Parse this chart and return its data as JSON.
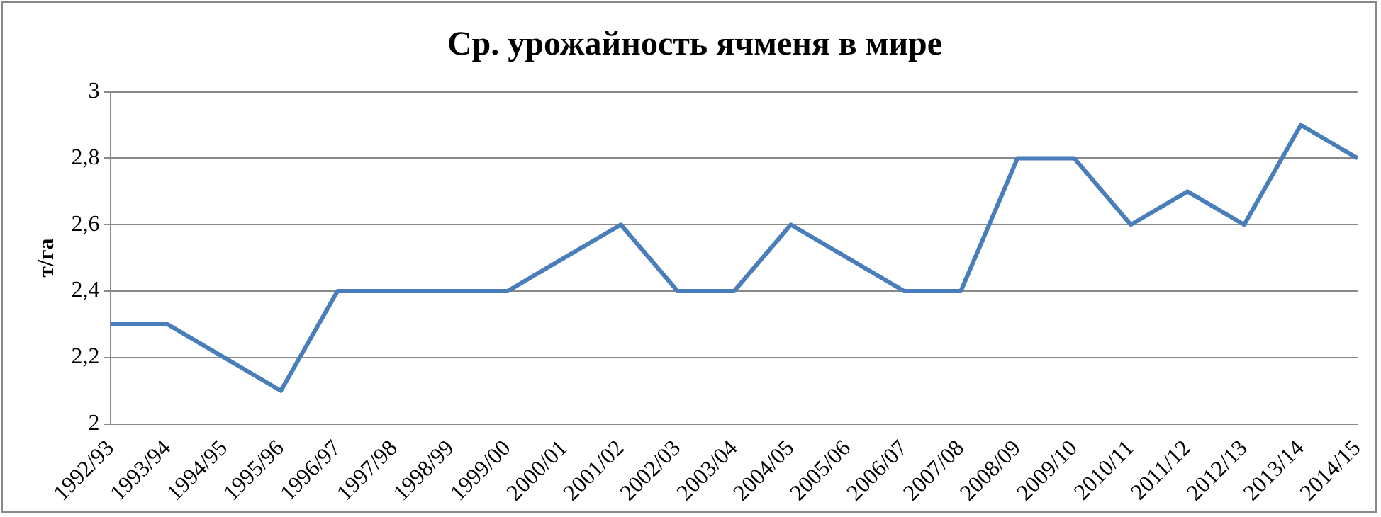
{
  "chart_data": {
    "type": "line",
    "title": "Ср. урожайность ячменя в мире",
    "ylabel": "т/га",
    "categories": [
      "1992/93",
      "1993/94",
      "1994/95",
      "1995/96",
      "1996/97",
      "1997/98",
      "1998/99",
      "1999/00",
      "2000/01",
      "2001/02",
      "2002/03",
      "2003/04",
      "2004/05",
      "2005/06",
      "2006/07",
      "2007/08",
      "2008/09",
      "2009/10",
      "2010/11",
      "2011/12",
      "2012/13",
      "2013/14",
      "2014/15"
    ],
    "series": [
      {
        "color": "#4a7ebb",
        "values": [
          2.3,
          2.3,
          2.2,
          2.1,
          2.4,
          2.4,
          2.4,
          2.4,
          2.5,
          2.6,
          2.4,
          2.4,
          2.6,
          2.5,
          2.4,
          2.4,
          2.8,
          2.8,
          2.6,
          2.7,
          2.6,
          2.9,
          2.8
        ]
      }
    ],
    "ylim": [
      2,
      3
    ],
    "yticks": [
      2,
      {
        "value": 2.2,
        "label": "2,2"
      },
      {
        "value": 2.4,
        "label": "2,4"
      },
      {
        "value": 2.6,
        "label": "2,6"
      },
      {
        "value": 2.8,
        "label": "2,8"
      },
      3
    ],
    "grid": "y",
    "legend": false,
    "marker": "none",
    "line_style": "solid"
  }
}
